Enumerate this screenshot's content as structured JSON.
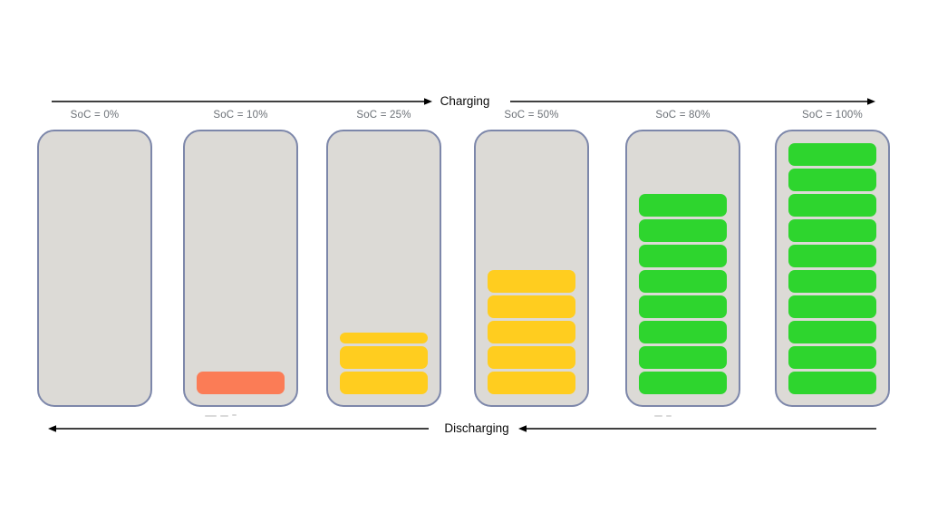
{
  "flow": {
    "charging_label": "Charging",
    "discharging_label": "Discharging"
  },
  "colors": {
    "background": "#ffffff",
    "battery_body": "#dcdad6",
    "battery_border": "#7d87aa",
    "arrow": "#000000",
    "soc_label_text": "#6b7076",
    "low": "#fb7c56",
    "medium": "#ffcd1f",
    "high": "#2ed52e"
  },
  "batteries": [
    {
      "label": "SoC = 0%",
      "soc_percent": 0,
      "full_bars": 0,
      "half_bar": false,
      "level": "empty",
      "color_key": null
    },
    {
      "label": "SoC = 10%",
      "soc_percent": 10,
      "full_bars": 1,
      "half_bar": false,
      "level": "low",
      "color_key": "low"
    },
    {
      "label": "SoC = 25%",
      "soc_percent": 25,
      "full_bars": 2,
      "half_bar": true,
      "level": "medium",
      "color_key": "medium"
    },
    {
      "label": "SoC = 50%",
      "soc_percent": 50,
      "full_bars": 5,
      "half_bar": false,
      "level": "medium",
      "color_key": "medium"
    },
    {
      "label": "SoC = 80%",
      "soc_percent": 80,
      "full_bars": 8,
      "half_bar": false,
      "level": "high",
      "color_key": "high"
    },
    {
      "label": "SoC = 100%",
      "soc_percent": 100,
      "full_bars": 10,
      "half_bar": false,
      "level": "high",
      "color_key": "high"
    }
  ]
}
